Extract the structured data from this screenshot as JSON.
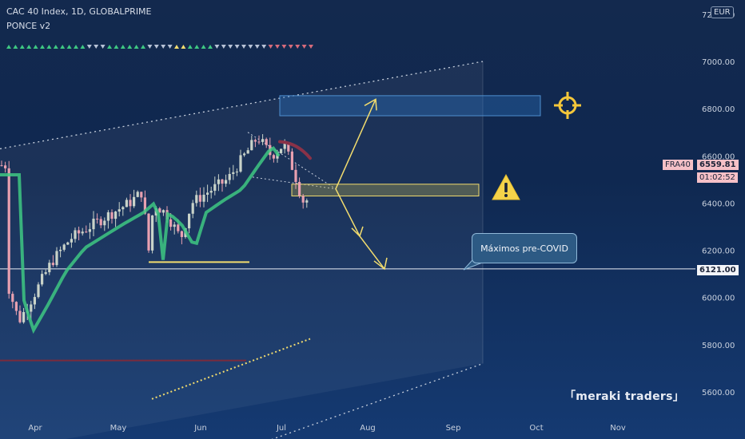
{
  "header": {
    "title": "CAC 40 Index, 1D, GLOBALPRIME",
    "indicator": "PONCE v2"
  },
  "currency": "EUR",
  "price_tags": {
    "symbol": "FRA40",
    "last": "6559.81",
    "countdown": "01:02:52",
    "level": "6121.00"
  },
  "annotations": {
    "callout": "Máximos pre-COVID",
    "brand": "「meraki traders」"
  },
  "icons": {
    "warning": "warning-triangle-icon",
    "target": "crosshair-target-icon"
  },
  "colors": {
    "background": "#13294e",
    "up_candle": "#c9d3c9",
    "down_candle": "#e8a0b0",
    "ma_line": "#3ec882",
    "yellow": "#f2dc6e",
    "level_line": "#e9edf5"
  },
  "chart_data": {
    "type": "candlestick",
    "title": "CAC 40 Index, 1D, GLOBALPRIME",
    "x_ticks": [
      "Apr",
      "May",
      "Jun",
      "Jul",
      "Aug",
      "Sep",
      "Oct",
      "Nov"
    ],
    "y_ticks": [
      5600,
      5800,
      6000,
      6200,
      6400,
      6600,
      6800,
      7000,
      7200
    ],
    "ylim": [
      5500,
      7200
    ],
    "grid": false,
    "series": [
      {
        "name": "close_path",
        "points": [
          [
            "Mar 22",
            6050
          ],
          [
            "Mar 26",
            5900
          ],
          [
            "Mar 31",
            6000
          ],
          [
            "Apr 7",
            6150
          ],
          [
            "Apr 14",
            6250
          ],
          [
            "Apr 21",
            6300
          ],
          [
            "Apr 28",
            6350
          ],
          [
            "May 5",
            6400
          ],
          [
            "May 10",
            6450
          ],
          [
            "May 12",
            6180
          ],
          [
            "May 14",
            6400
          ],
          [
            "May 19",
            6350
          ],
          [
            "May 24",
            6250
          ],
          [
            "May 28",
            6400
          ],
          [
            "Jun 4",
            6450
          ],
          [
            "Jun 11",
            6500
          ],
          [
            "Jun 17",
            6600
          ],
          [
            "Jun 22",
            6680
          ],
          [
            "Jun 27",
            6600
          ],
          [
            "Jul 2",
            6650
          ],
          [
            "Jul 6",
            6520
          ],
          [
            "Jul 8",
            6440
          ],
          [
            "Jul 10",
            6380
          ],
          [
            "Jul 12",
            6560
          ]
        ]
      }
    ],
    "horizontal_levels": [
      {
        "label": "6121.00",
        "value": 6121
      }
    ],
    "zones": [
      {
        "name": "upper-target-zone",
        "from": 6770,
        "to": 6855
      },
      {
        "name": "current-zone",
        "from": 6430,
        "to": 6480
      }
    ]
  }
}
